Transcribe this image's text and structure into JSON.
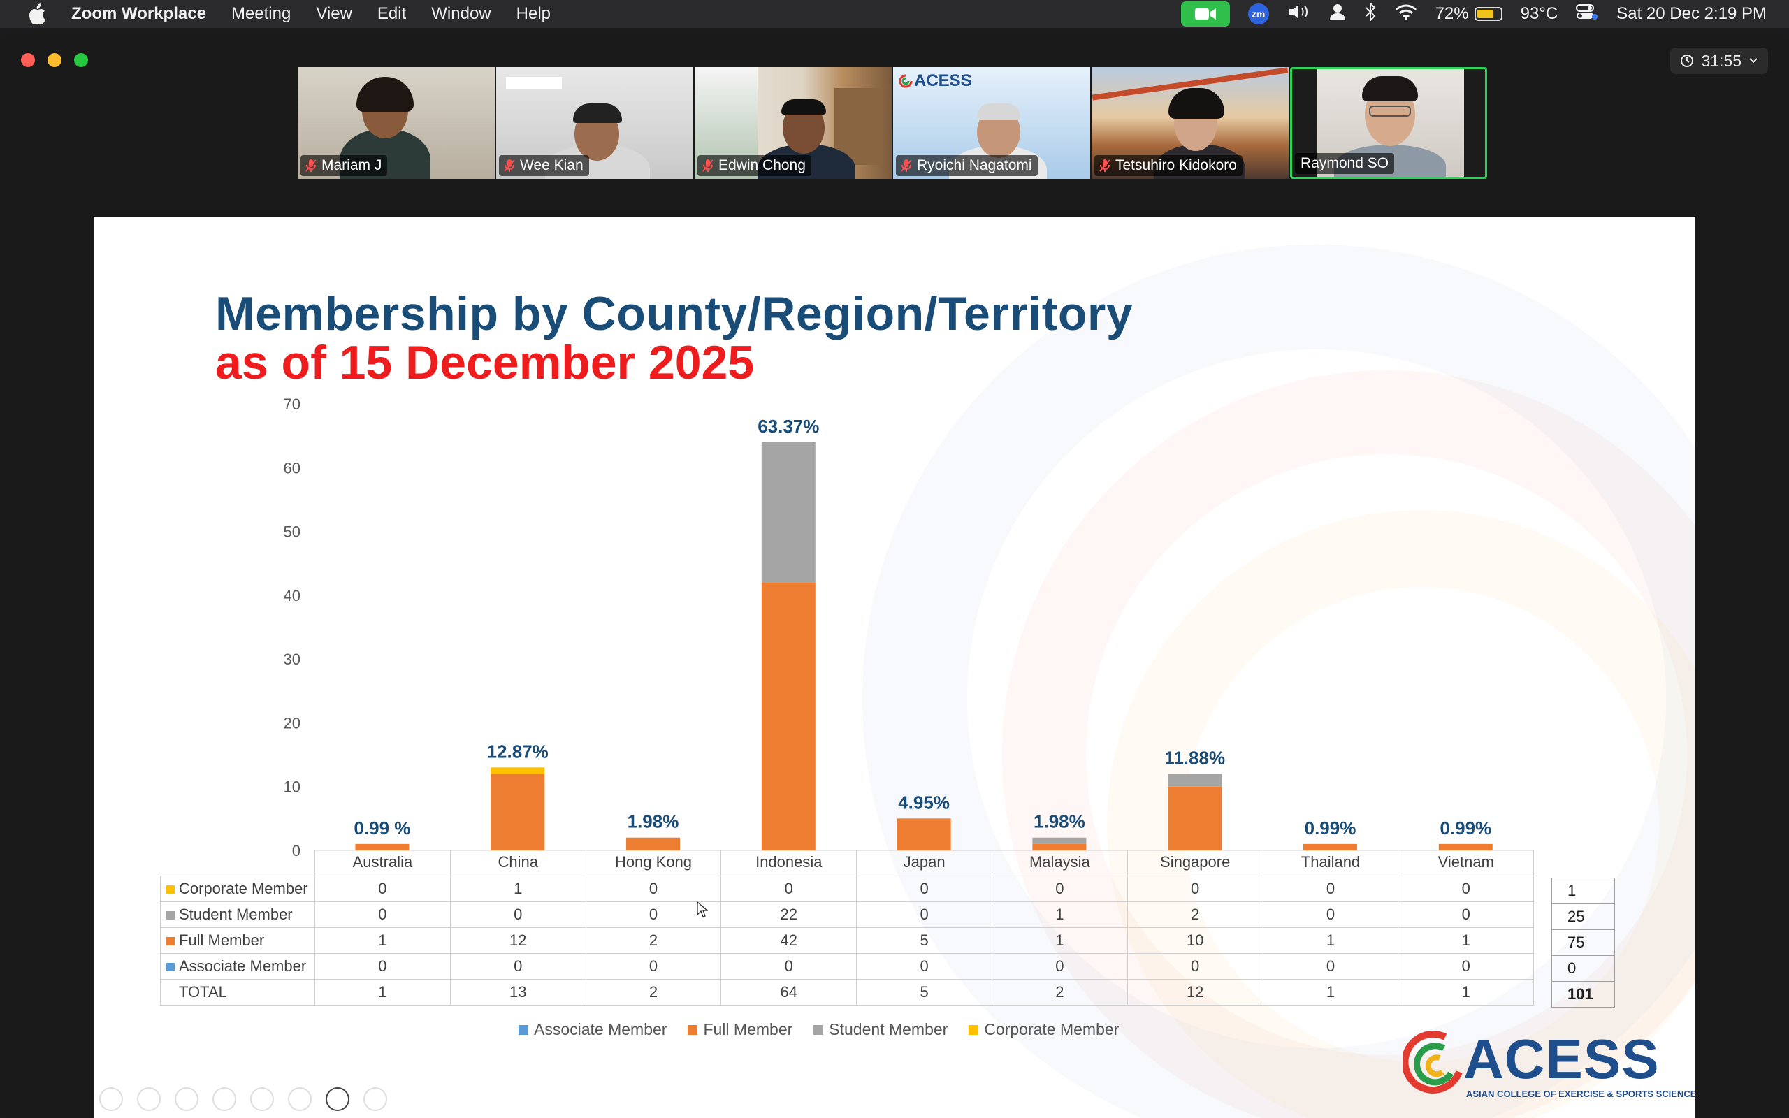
{
  "menubar": {
    "app_name": "Zoom Workplace",
    "menus": [
      "Meeting",
      "View",
      "Edit",
      "Window",
      "Help"
    ],
    "zoom_badge": "zm",
    "battery_percent": "72%",
    "battery_level": 0.72,
    "temperature": "93°C",
    "datetime": "Sat 20 Dec  2:19 PM"
  },
  "window": {
    "timer": "31:55"
  },
  "participants": [
    {
      "name": "Mariam J",
      "muted": true
    },
    {
      "name": "Wee Kian",
      "muted": true
    },
    {
      "name": "Edwin Chong",
      "muted": true
    },
    {
      "name": "Ryoichi Nagatomi",
      "muted": true
    },
    {
      "name": "Tetsuhiro Kidokoro",
      "muted": true
    },
    {
      "name": "Raymond SO",
      "muted": false,
      "active_speaker": true
    }
  ],
  "slide": {
    "title": "Membership by County/Region/Territory",
    "subtitle": "as of 15 December 2025",
    "logo_text": "ACESS",
    "logo_tagline": "ASIAN COLLEGE OF EXERCISE & SPORTS SCIENCE",
    "tile_logo_text": "ACESS"
  },
  "chart_data": {
    "type": "bar",
    "stacked": true,
    "categories": [
      "Australia",
      "China",
      "Hong Kong",
      "Indonesia",
      "Japan",
      "Malaysia",
      "Singapore",
      "Thailand",
      "Vietnam"
    ],
    "series": [
      {
        "name": "Associate Member",
        "color": "#5b9bd5",
        "values": [
          0,
          0,
          0,
          0,
          0,
          0,
          0,
          0,
          0
        ]
      },
      {
        "name": "Full Member",
        "color": "#ed7d31",
        "values": [
          1,
          12,
          2,
          42,
          5,
          1,
          10,
          1,
          1
        ]
      },
      {
        "name": "Student Member",
        "color": "#a5a5a5",
        "values": [
          0,
          0,
          0,
          22,
          0,
          1,
          2,
          0,
          0
        ]
      },
      {
        "name": "Corporate Member",
        "color": "#ffc000",
        "values": [
          0,
          1,
          0,
          0,
          0,
          0,
          0,
          0,
          0
        ]
      }
    ],
    "totals": [
      1,
      13,
      2,
      64,
      5,
      2,
      12,
      1,
      1
    ],
    "percent_labels": [
      "0.99 %",
      "12.87%",
      "1.98%",
      "63.37%",
      "4.95%",
      "1.98%",
      "11.88%",
      "0.99%",
      "0.99%"
    ],
    "ylim": [
      0,
      70
    ],
    "yticks": [
      0,
      10,
      20,
      30,
      40,
      50,
      60,
      70
    ],
    "legend_position": "bottom",
    "table_rows": [
      {
        "label": "Corporate Member",
        "color": "#ffc000",
        "values": [
          0,
          1,
          0,
          0,
          0,
          0,
          0,
          0,
          0
        ],
        "sum": "1"
      },
      {
        "label": "Student Member",
        "color": "#a5a5a5",
        "values": [
          0,
          0,
          0,
          22,
          0,
          1,
          2,
          0,
          0
        ],
        "sum": "25"
      },
      {
        "label": "Full Member",
        "color": "#ed7d31",
        "values": [
          1,
          12,
          2,
          42,
          5,
          1,
          10,
          1,
          1
        ],
        "sum": "75"
      },
      {
        "label": "Associate Member",
        "color": "#5b9bd5",
        "values": [
          0,
          0,
          0,
          0,
          0,
          0,
          0,
          0,
          0
        ],
        "sum": "0"
      },
      {
        "label": "TOTAL",
        "color": "",
        "values": [
          1,
          13,
          2,
          64,
          5,
          2,
          12,
          1,
          1
        ],
        "sum": "101"
      }
    ]
  }
}
